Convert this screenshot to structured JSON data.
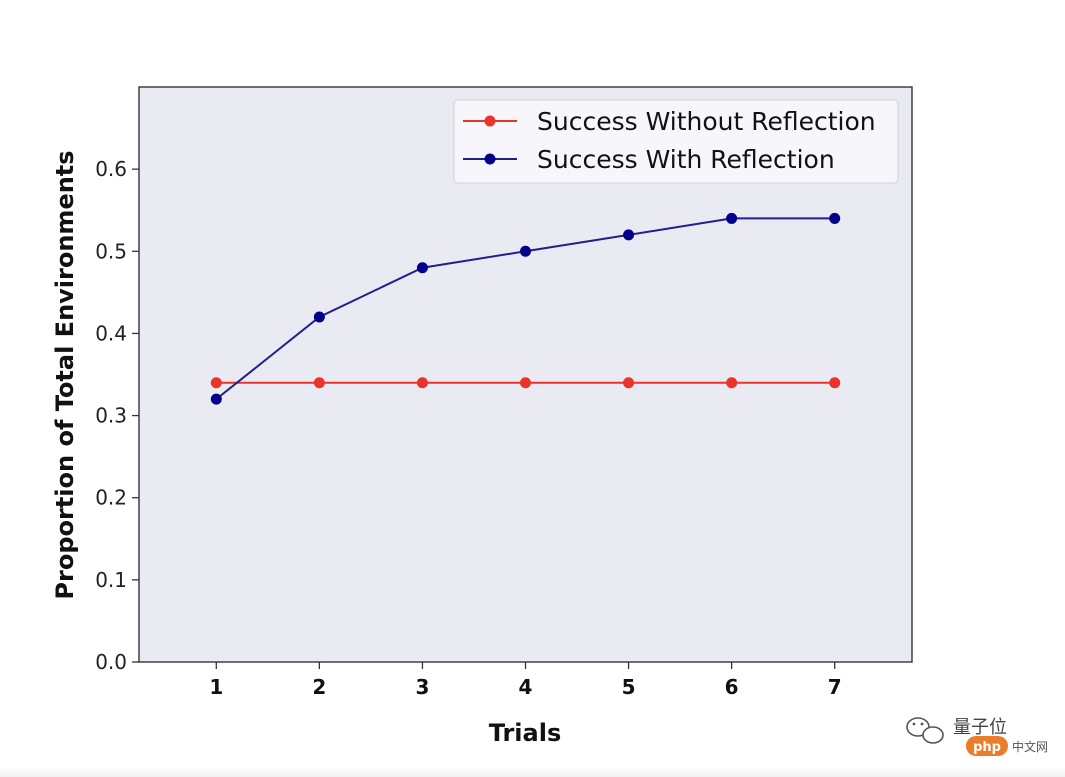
{
  "chart_data": {
    "type": "line",
    "title": "",
    "xlabel": "Trials",
    "ylabel": "Proportion of Total Environments",
    "x": [
      1,
      2,
      3,
      4,
      5,
      6,
      7
    ],
    "xlim": [
      0.25,
      7.75
    ],
    "ylim": [
      0.0,
      0.7
    ],
    "yticks": [
      0.0,
      0.1,
      0.2,
      0.3,
      0.4,
      0.5,
      0.6
    ],
    "ytick_labels": [
      "0.0",
      "0.1",
      "0.2",
      "0.3",
      "0.4",
      "0.5",
      "0.6"
    ],
    "xtick_labels": [
      "1",
      "2",
      "3",
      "4",
      "5",
      "6",
      "7"
    ],
    "grid": false,
    "legend_position": "top-right",
    "background": "#eaeaf2",
    "series": [
      {
        "name": "Success Without Reflection",
        "color": "#e8342a",
        "values": [
          0.34,
          0.34,
          0.34,
          0.34,
          0.34,
          0.34,
          0.34
        ]
      },
      {
        "name": "Success With Reflection",
        "color": "#1f1f8f",
        "marker_color": "#00008b",
        "values": [
          0.32,
          0.42,
          0.48,
          0.5,
          0.52,
          0.54,
          0.54
        ]
      }
    ]
  },
  "watermark": {
    "brand": "量子位",
    "badge": "php",
    "site": "中文网"
  }
}
